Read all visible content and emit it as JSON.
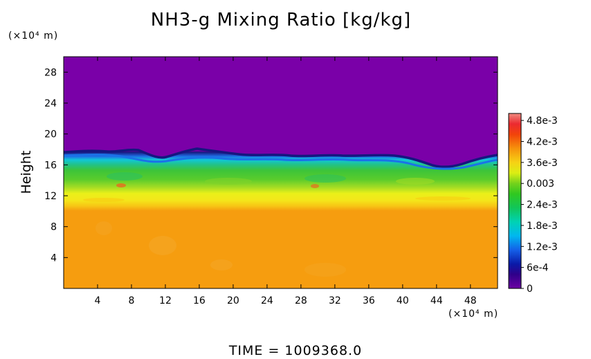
{
  "chart_data": {
    "type": "heatmap",
    "title": "NH3-g Mixing Ratio [kg/kg]",
    "ylabel": "Height",
    "xunit_label": "(×10⁴ m)",
    "yunit_label": "(×10⁴ m)",
    "x_ticks": [
      "4",
      "8",
      "12",
      "16",
      "20",
      "24",
      "28",
      "32",
      "36",
      "40",
      "44",
      "48"
    ],
    "x_tick_values": [
      4,
      8,
      12,
      16,
      20,
      24,
      28,
      32,
      36,
      40,
      44,
      48
    ],
    "xlim": [
      0,
      51.2
    ],
    "y_ticks": [
      "4",
      "8",
      "12",
      "16",
      "20",
      "24",
      "28"
    ],
    "y_tick_values": [
      4,
      8,
      12,
      16,
      20,
      24,
      28
    ],
    "ylim": [
      0,
      30
    ],
    "colorbar": {
      "labels": [
        "0",
        "6e-4",
        "1.2e-3",
        "1.8e-3",
        "2.4e-3",
        "0.003",
        "3.6e-3",
        "4.2e-3",
        "4.8e-3"
      ],
      "values": [
        0,
        0.0006,
        0.0012,
        0.0018,
        0.0024,
        0.003,
        0.0036,
        0.0042,
        0.0048
      ],
      "range": [
        0,
        0.005
      ]
    },
    "layers": [
      {
        "y_range": [
          0,
          10.5
        ],
        "value": 0.0044
      },
      {
        "y_range": [
          10.5,
          12.5
        ],
        "value": 0.0037
      },
      {
        "y_range": [
          12.5,
          15.5
        ],
        "value": 0.0026
      },
      {
        "y_range": [
          15.5,
          17.5
        ],
        "value": 0.0012
      },
      {
        "y_range": [
          17.5,
          30
        ],
        "value": 0.0
      }
    ]
  },
  "footer": {
    "time_text": "TIME  =  1009368.0"
  }
}
